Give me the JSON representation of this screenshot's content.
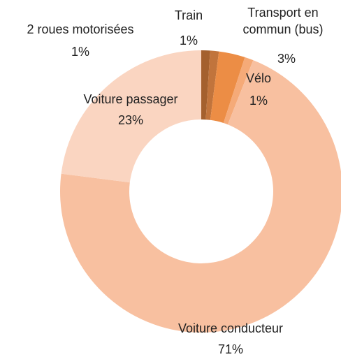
{
  "chart_data": {
    "type": "donut",
    "categories": [
      "2 roues motorisées",
      "Train",
      "Transport en commun (bus)",
      "Vélo",
      "Voiture conducteur",
      "Voiture passager"
    ],
    "values": [
      1,
      1,
      3,
      1,
      71,
      23
    ],
    "value_labels": [
      "1%",
      "1%",
      "3%",
      "1%",
      "71%",
      "23%"
    ],
    "colors": [
      "#a4602e",
      "#c1743c",
      "#ec8d45",
      "#f5aa78",
      "#f8c0a0",
      "#fad5c1"
    ]
  }
}
